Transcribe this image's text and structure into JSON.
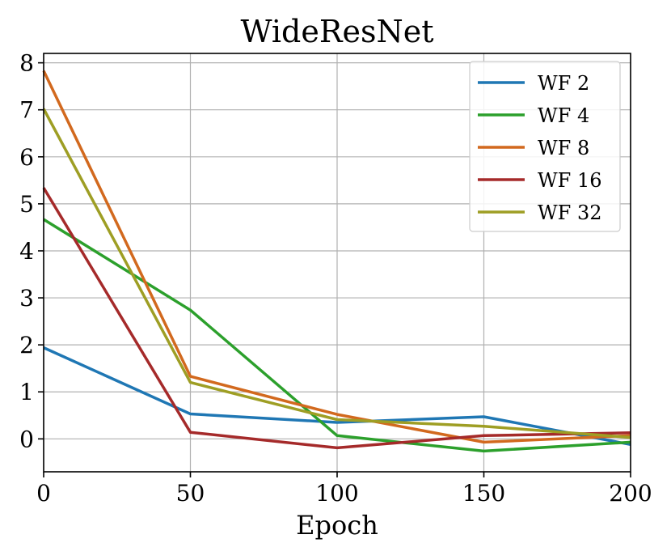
{
  "chart_data": {
    "type": "line",
    "title": "WideResNet",
    "xlabel": "Epoch",
    "ylabel": "",
    "x": [
      0,
      50,
      100,
      150,
      200
    ],
    "xlim": [
      0,
      200
    ],
    "ylim": [
      -0.7,
      8.2
    ],
    "xticks": [
      0,
      50,
      100,
      150,
      200
    ],
    "yticks": [
      0,
      1,
      2,
      3,
      4,
      5,
      6,
      7,
      8
    ],
    "grid": true,
    "legend_position": "top-right",
    "series": [
      {
        "name": "WF 2",
        "color": "#1f77b4",
        "values": [
          1.94,
          0.53,
          0.35,
          0.47,
          -0.12
        ]
      },
      {
        "name": "WF 4",
        "color": "#2ca02c",
        "values": [
          4.67,
          2.74,
          0.07,
          -0.26,
          -0.07
        ]
      },
      {
        "name": "WF 8",
        "color": "#d2691e",
        "values": [
          7.83,
          1.33,
          0.52,
          -0.07,
          0.07
        ]
      },
      {
        "name": "WF 16",
        "color": "#a52a2a",
        "values": [
          5.34,
          0.14,
          -0.19,
          0.07,
          0.13
        ]
      },
      {
        "name": "WF 32",
        "color": "#9e9e24",
        "values": [
          7.02,
          1.2,
          0.41,
          0.27,
          0.03
        ]
      }
    ]
  }
}
